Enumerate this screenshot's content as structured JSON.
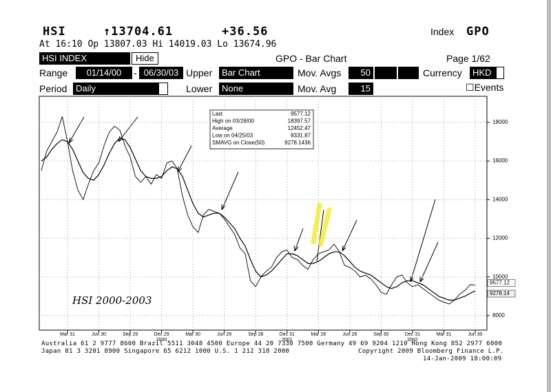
{
  "header": {
    "symbol": "HSI",
    "last": "↑13704.61",
    "change": "+36.56",
    "index_label": "Index",
    "function": "GPO",
    "quote_line": "At 16:10  Op 13807.03 Hi 14019.03 Lo 13674.96",
    "security": "HSI INDEX",
    "hide": "Hide",
    "screen_title": "GPO - Bar Chart",
    "page": "Page 1/62",
    "range_label": "Range",
    "range_start": "01/14/00",
    "range_dash": "-",
    "range_end": "06/30/03",
    "upper_label": "Upper",
    "upper_value": "Bar Chart",
    "mov_avgs_label": "Mov. Avgs",
    "mov_avgs_value": "50",
    "currency_label": "Currency",
    "currency_value": "HKD",
    "period_label": "Period",
    "period_value": "Daily",
    "lower_label": "Lower",
    "lower_value": "None",
    "mov_avg_label": "Mov. Avg",
    "mov_avg_value": "15",
    "events": "Events"
  },
  "chart_data": {
    "type": "line",
    "categories": [
      null,
      null,
      null,
      null,
      null,
      "Mar 31",
      null,
      null,
      null,
      null,
      null,
      "Jun 30",
      null,
      null,
      null,
      null,
      null,
      "Sep 29",
      null,
      null,
      null,
      null,
      null,
      "Dec 29",
      null,
      null,
      null,
      null,
      null,
      "Mar 30",
      null,
      null,
      null,
      null,
      null,
      "Jun 29",
      null,
      null,
      null,
      null,
      null,
      "Sep 28",
      null,
      null,
      null,
      null,
      null,
      "Dec 31",
      null,
      null,
      null,
      null,
      null,
      "Mar 28",
      null,
      null,
      null,
      null,
      null,
      "Jun 28",
      null,
      null,
      null,
      null,
      null,
      "Sep 30",
      null,
      null,
      null,
      null,
      null,
      "Dec 31",
      null,
      null,
      null,
      null,
      null,
      "Mar 31",
      null,
      null,
      null,
      null,
      null,
      "Jun 30"
    ],
    "year_labels": [
      "2000",
      "2001",
      "2002"
    ],
    "series": [
      {
        "name": "Close",
        "color": "#000000",
        "values": [
          15500,
          16500,
          17000,
          17500,
          18300,
          17000,
          15500,
          14500,
          14000,
          14800,
          15500,
          15900,
          16800,
          17500,
          17800,
          17600,
          16800,
          16200,
          15200,
          14900,
          15200,
          14800,
          15300,
          15100,
          15900,
          16000,
          15600,
          14200,
          13200,
          12600,
          12300,
          13200,
          13500,
          13400,
          13300,
          13000,
          12600,
          12200,
          11500,
          11200,
          9800,
          9500,
          10000,
          10300,
          10500,
          11000,
          11300,
          11400,
          11000,
          10900,
          10600,
          10400,
          10900,
          11200,
          11300,
          11400,
          11700,
          11300,
          10600,
          10500,
          10300,
          10000,
          10100,
          9900,
          9600,
          9200,
          9100,
          9600,
          10000,
          10100,
          9700,
          9500,
          9600,
          9400,
          9200,
          9000,
          8800,
          8700,
          8600,
          8800,
          9100,
          9300,
          9600,
          9577.12
        ]
      },
      {
        "name": "SMAVG(50)",
        "color": "#000000",
        "values": [
          16000,
          16200,
          16600,
          16900,
          17100,
          17000,
          16600,
          16000,
          15400,
          15100,
          15000,
          15300,
          15800,
          16400,
          16900,
          17200,
          17100,
          16700,
          16100,
          15500,
          15200,
          15100,
          15100,
          15200,
          15500,
          15700,
          15600,
          15200,
          14500,
          13800,
          13300,
          13100,
          13200,
          13300,
          13300,
          13100,
          12800,
          12500,
          12000,
          11600,
          10900,
          10300,
          10000,
          10100,
          10300,
          10600,
          10900,
          11200,
          11200,
          11100,
          10900,
          10700,
          10700,
          10800,
          11000,
          11200,
          11300,
          11300,
          11100,
          10800,
          10500,
          10300,
          10200,
          10100,
          9900,
          9700,
          9500,
          9400,
          9500,
          9700,
          9800,
          9800,
          9700,
          9600,
          9400,
          9200,
          9000,
          8900,
          8800,
          8800,
          8900,
          9000,
          9150,
          9278.14
        ]
      }
    ],
    "ylim": [
      7250,
      19350
    ],
    "yticks": [
      8000,
      10000,
      12000,
      14000,
      16000,
      18000
    ],
    "grid": true,
    "stats_box": [
      [
        "Last",
        "9577.12"
      ],
      [
        "High on 03/28/00",
        "18397.57"
      ],
      [
        "Average",
        "12452.47"
      ],
      [
        "Low on 04/25/03",
        "8331.87"
      ],
      [
        "SMAVG on Close(50)",
        "9278.1436"
      ]
    ],
    "annotation": "HSI 2000-2003"
  },
  "footer": {
    "line1": "Australia 61 2 9777 8600 Brazil 5511 3048 4500 Europe 44 20 7330 7500 Germany 49 69 9204 1210 Hong Kong 852 2977 6000",
    "line2_left": "Japan 81 3 3201 8900        Singapore 65 6212 1000        U.S. 1 212 318 2000",
    "line2_right": "Copyright 2009 Bloomberg Finance L.P.",
    "timestamp": "14-Jan-2009 18:00:09"
  }
}
